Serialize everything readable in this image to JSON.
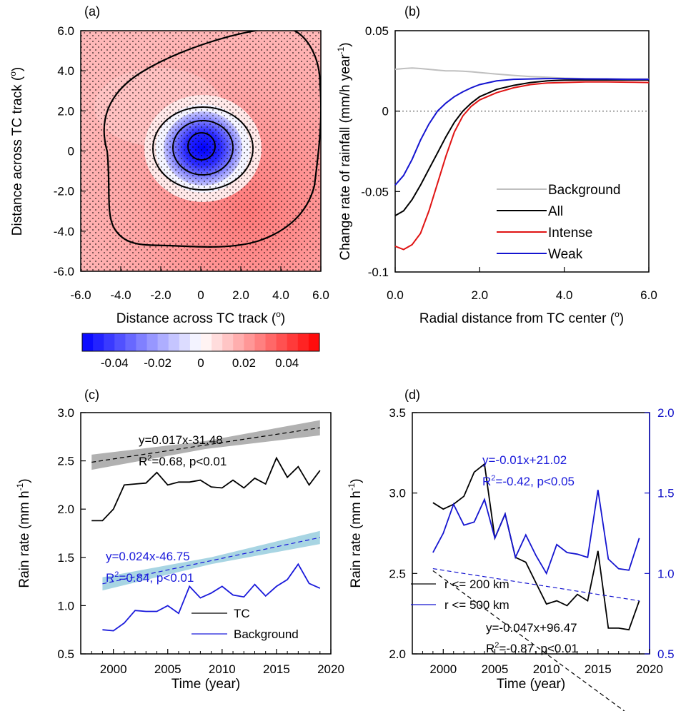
{
  "panels": {
    "a": {
      "label": "(a)",
      "xlabel": "Distance across TC track (",
      "ylabel": "Distance across TC track (",
      "deg": "o",
      "ticks": [
        "-6.0",
        "-4.0",
        "-2.0",
        "0",
        "2.0",
        "4.0",
        "6.0"
      ]
    },
    "b": {
      "label": "(b)",
      "xlabel": "Radial distance from TC center (",
      "ylabel": "Change rate of rainfall (mm/h year",
      "ysup": "-1",
      "deg": "o"
    },
    "c": {
      "label": "(c)",
      "xlabel": "Time (year)",
      "ylabel": "Rain rate (mm h",
      "ysup": "-1",
      "eq_tc": "y=0.017x-31.48",
      "r2_tc": "=0.68, p<0.01",
      "eq_bg": "y=0.024x-46.75",
      "r2_bg": "=0.84, p<0.01"
    },
    "d": {
      "label": "(d)",
      "xlabel": "Time (year)",
      "ylabel": "Rain rate (mm h",
      "ysup": "-1",
      "eq_500": "y=-0.01x+21.02",
      "r2_500": "=-0.42, p<0.05",
      "eq_200": "y=-0.047x+96.47",
      "r2_200": "=-0.87, p<0.01"
    },
    "r2": "R",
    "sup2": "2"
  },
  "colors": {
    "tc": "#000000",
    "background_c": "#1a1adb",
    "intense": "#e01414",
    "weak": "#1414d0",
    "bg_b": "#bfbfbf",
    "band_tc": "#a9a9a9",
    "band_bg": "#9fd0e0",
    "right_axis": "#1010c8"
  },
  "chart_data": [
    {
      "panel": "a",
      "type": "heatmap",
      "xlim": [
        -6,
        6
      ],
      "ylim": [
        -6,
        6
      ],
      "xticks": [
        -6,
        -4,
        -2,
        0,
        2,
        4,
        6
      ],
      "colorbar": {
        "levels": [
          -0.055,
          -0.05,
          -0.045,
          -0.04,
          -0.035,
          -0.03,
          -0.025,
          -0.02,
          -0.015,
          -0.01,
          -0.005,
          0,
          0.005,
          0.01,
          0.015,
          0.02,
          0.025,
          0.03,
          0.035,
          0.04,
          0.045,
          0.05,
          0.055
        ],
        "tick_labels": [
          "-0.04",
          "-0.02",
          "0",
          "0.02",
          "0.04"
        ],
        "tick_values": [
          -0.04,
          -0.02,
          0,
          0.02,
          0.04
        ]
      }
    },
    {
      "panel": "b",
      "type": "line",
      "xlim": [
        0,
        6
      ],
      "ylim": [
        -0.1,
        0.05
      ],
      "xticks": [
        "0.0",
        "2.0",
        "4.0",
        "6.0"
      ],
      "yticks": [
        "-0.1",
        "-0.05",
        "0",
        "0.05"
      ],
      "x": [
        0,
        0.2,
        0.4,
        0.6,
        0.8,
        1.0,
        1.2,
        1.4,
        1.6,
        1.8,
        2.0,
        2.4,
        2.8,
        3.2,
        3.6,
        4.0,
        4.5,
        5.0,
        5.5,
        6.0
      ],
      "series": [
        {
          "name": "Background",
          "values": [
            0.026,
            0.0265,
            0.0268,
            0.0265,
            0.026,
            0.0255,
            0.025,
            0.025,
            0.0248,
            0.0245,
            0.024,
            0.023,
            0.0222,
            0.0215,
            0.021,
            0.0205,
            0.0202,
            0.02,
            0.02,
            0.02
          ]
        },
        {
          "name": "All",
          "values": [
            -0.065,
            -0.062,
            -0.055,
            -0.046,
            -0.036,
            -0.026,
            -0.016,
            -0.007,
            0.0,
            0.005,
            0.009,
            0.0135,
            0.016,
            0.0178,
            0.0188,
            0.0193,
            0.0194,
            0.0194,
            0.0194,
            0.0194
          ]
        },
        {
          "name": "Intense",
          "values": [
            -0.084,
            -0.086,
            -0.083,
            -0.076,
            -0.062,
            -0.045,
            -0.028,
            -0.013,
            -0.003,
            0.003,
            0.007,
            0.0115,
            0.0145,
            0.0165,
            0.0175,
            0.0178,
            0.0182,
            0.0182,
            0.018,
            0.0178
          ]
        },
        {
          "name": "Weak",
          "values": [
            -0.046,
            -0.04,
            -0.03,
            -0.018,
            -0.008,
            0.0,
            0.005,
            0.009,
            0.012,
            0.0145,
            0.0165,
            0.0188,
            0.0198,
            0.02,
            0.0202,
            0.0202,
            0.02,
            0.02,
            0.0198,
            0.0198
          ]
        }
      ]
    },
    {
      "panel": "c",
      "type": "line",
      "xlim": [
        1997,
        2020
      ],
      "ylim": [
        0.5,
        3.0
      ],
      "xticks": [
        "2000",
        "2005",
        "2010",
        "2015",
        "2020"
      ],
      "yticks": [
        "0.5",
        "1.0",
        "1.5",
        "2.0",
        "2.5",
        "3.0"
      ],
      "x": [
        1998,
        1999,
        2000,
        2001,
        2002,
        2003,
        2004,
        2005,
        2006,
        2007,
        2008,
        2009,
        2010,
        2011,
        2012,
        2013,
        2014,
        2015,
        2016,
        2017,
        2018,
        2019
      ],
      "series": [
        {
          "name": "TC",
          "values": [
            1.88,
            1.88,
            2.0,
            2.25,
            2.26,
            2.27,
            2.38,
            2.25,
            2.28,
            2.28,
            2.3,
            2.23,
            2.22,
            2.3,
            2.22,
            2.32,
            2.26,
            2.53,
            2.33,
            2.44,
            2.25,
            2.4
          ]
        },
        {
          "name": "Background",
          "values": [
            null,
            0.75,
            0.74,
            0.82,
            0.95,
            0.94,
            0.94,
            1.0,
            0.92,
            1.2,
            1.08,
            1.13,
            1.2,
            1.11,
            1.09,
            1.22,
            1.1,
            1.2,
            1.27,
            1.43,
            1.23,
            1.18
          ]
        }
      ],
      "trend": {
        "TC": {
          "slope": 0.017,
          "intercept": -31.48
        },
        "Background": {
          "slope": 0.024,
          "intercept": -46.75
        }
      }
    },
    {
      "panel": "d",
      "type": "line",
      "xlim": [
        1997,
        2020
      ],
      "ylim": [
        2.0,
        3.5
      ],
      "y2lim": [
        0.5,
        2.0
      ],
      "xticks": [
        "2000",
        "2005",
        "2010",
        "2015",
        "2020"
      ],
      "yticks": [
        "2.0",
        "2.5",
        "3.0",
        "3.5"
      ],
      "y2ticks": [
        "0.5",
        "1.0",
        "1.5",
        "2.0"
      ],
      "x": [
        1999,
        2000,
        2001,
        2002,
        2003,
        2004,
        2005,
        2006,
        2007,
        2008,
        2009,
        2010,
        2011,
        2012,
        2013,
        2014,
        2015,
        2016,
        2017,
        2018,
        2019
      ],
      "series": [
        {
          "name": "r <= 200 km",
          "axis": "left",
          "values": [
            2.94,
            2.9,
            2.93,
            2.98,
            3.13,
            3.18,
            2.72,
            2.87,
            2.6,
            2.57,
            2.44,
            2.31,
            2.33,
            2.3,
            2.37,
            2.33,
            2.64,
            2.16,
            2.16,
            2.15,
            2.33
          ]
        },
        {
          "name": "r <= 500 km",
          "axis": "right",
          "values": [
            1.13,
            1.25,
            1.43,
            1.3,
            1.32,
            1.46,
            1.22,
            1.37,
            1.1,
            1.24,
            1.11,
            1.0,
            1.18,
            1.13,
            1.12,
            1.1,
            1.52,
            1.09,
            1.03,
            1.02,
            1.22
          ]
        }
      ],
      "trend": {
        "r <= 200 km": {
          "slope": -0.047,
          "intercept": 96.47
        },
        "r <= 500 km": {
          "slope": -0.01,
          "intercept": 21.02
        }
      }
    }
  ]
}
